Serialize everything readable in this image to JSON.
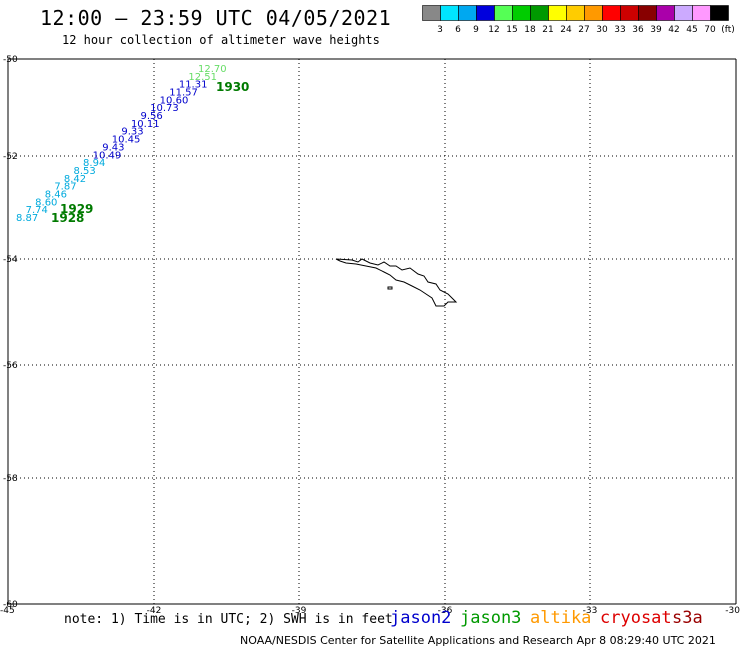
{
  "header": {
    "title": "12:00 – 23:59 UTC 04/05/2021",
    "subtitle": "12 hour collection of altimeter wave heights"
  },
  "legend": {
    "colors": [
      "#888888",
      "#00e5ff",
      "#00a8f0",
      "#0000dd",
      "#55ff55",
      "#00cc00",
      "#009900",
      "#ffff00",
      "#ffcc00",
      "#ff9900",
      "#ff0000",
      "#cc0000",
      "#880000",
      "#aa00aa",
      "#ccaaff",
      "#ff99ff",
      "#000000"
    ],
    "labels": [
      "3",
      "6",
      "9",
      "12",
      "15",
      "18",
      "21",
      "24",
      "27",
      "30",
      "33",
      "36",
      "39",
      "42",
      "45",
      "70",
      "(ft)"
    ]
  },
  "axes": {
    "lat_labels": [
      "-50",
      "-52",
      "-54",
      "-56",
      "-58",
      "-60"
    ],
    "lon_labels": [
      "-45",
      "-42",
      "-39",
      "-36",
      "-33",
      "-30"
    ]
  },
  "observations": [
    {
      "value": "12.70",
      "color": "#66dd66"
    },
    {
      "value": "12.51",
      "color": "#66dd66"
    },
    {
      "value": "11.31",
      "color": "#0000cc"
    },
    {
      "value": "11.57",
      "color": "#0000cc"
    },
    {
      "value": "10.60",
      "color": "#0000cc"
    },
    {
      "value": "10.73",
      "color": "#0000cc"
    },
    {
      "value": "9.56",
      "color": "#0000cc"
    },
    {
      "value": "10.11",
      "color": "#0000cc"
    },
    {
      "value": "9.33",
      "color": "#0000cc"
    },
    {
      "value": "10.45",
      "color": "#0000cc"
    },
    {
      "value": "9.43",
      "color": "#0000cc"
    },
    {
      "value": "10.49",
      "color": "#0000cc"
    },
    {
      "value": "8.94",
      "color": "#00aadd"
    },
    {
      "value": "8.53",
      "color": "#00aadd"
    },
    {
      "value": "8.42",
      "color": "#00aadd"
    },
    {
      "value": "7.87",
      "color": "#00aadd"
    },
    {
      "value": "8.46",
      "color": "#00aadd"
    },
    {
      "value": "8.60",
      "color": "#00aadd"
    },
    {
      "value": "7.74",
      "color": "#00aadd"
    },
    {
      "value": "8.87",
      "color": "#00aadd"
    }
  ],
  "sat_times": [
    "1930",
    "1929",
    "1928"
  ],
  "footer": {
    "note": "note: 1) Time is in UTC; 2) SWH is in feet",
    "satellites": [
      {
        "name": "jason2",
        "color": "#0000cc"
      },
      {
        "name": "jason3",
        "color": "#009900"
      },
      {
        "name": "altika",
        "color": "#ff9900"
      },
      {
        "name": "cryosat",
        "color": "#dd0000"
      },
      {
        "name": "s3a",
        "color": "#990000"
      }
    ],
    "credit": "NOAA/NESDIS Center for Satellite Applications and Research   Apr  8 08:29:40 UTC 2021"
  }
}
